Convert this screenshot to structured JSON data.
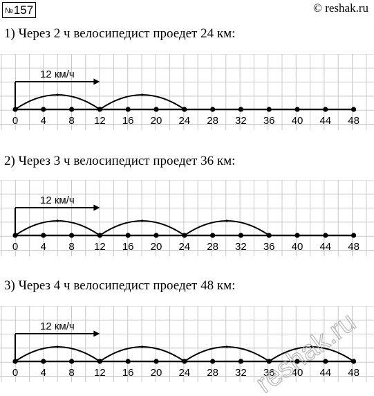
{
  "badge": {
    "prefix": "№",
    "number": "157"
  },
  "site": "© reshak.ru",
  "watermark": "reshak.ru",
  "speed_label": "12 км/ч",
  "tick_labels": [
    "0",
    "4",
    "8",
    "12",
    "16",
    "20",
    "24",
    "28",
    "32",
    "36",
    "40",
    "44",
    "48"
  ],
  "problems": [
    {
      "heading": "1) Через 2 ч велосипедист проедет 24 км:",
      "hours": 2
    },
    {
      "heading": "2) Через 3 ч велосипедист проедет 36 км:",
      "hours": 3
    },
    {
      "heading": "3) Через 4 ч велосипедист проедет 48 км:",
      "hours": 4
    }
  ],
  "colors": {
    "grid": "#c8c8c8",
    "ink": "#000000",
    "watermark": "#b0b0b0"
  }
}
